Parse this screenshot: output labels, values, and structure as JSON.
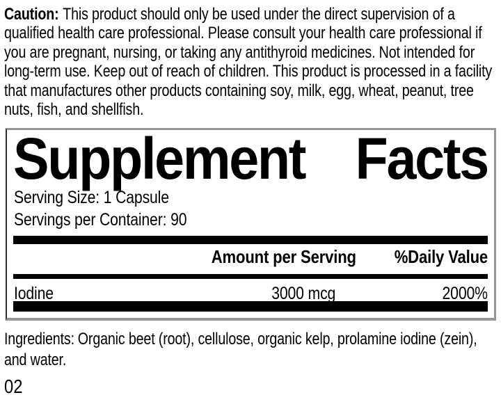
{
  "caution": {
    "label": "Caution:",
    "body": "This product should only be used under the direct supervision of a qualified health care professional. Please consult your health care professional if you are pregnant, nursing, or taking any antithyroid medicines. Not intended for long-term use. Keep out of reach of children. This product is processed in a facility that manufactures other products containing soy, milk, egg, wheat, peanut, tree nuts, fish, and shellfish."
  },
  "facts": {
    "title": {
      "word1": "Supplement",
      "word2": "Facts"
    },
    "serving_size": "Serving Size: 1 Capsule",
    "servings_per_container": "Servings per Container: 90",
    "headers": {
      "amount": "Amount per Serving",
      "daily_value": "%Daily Value"
    },
    "rows": [
      {
        "name": "Iodine",
        "amount": "3000 mcg",
        "daily_value": "2000%"
      }
    ]
  },
  "ingredients": {
    "label": "Ingredients:",
    "body": "Organic beet (root), cellulose, organic kelp, prolamine iodine (zein), and water."
  },
  "code": "02",
  "colors": {
    "text": "#000000",
    "separator_bar": "#000000",
    "panel_border": "#969696",
    "background": "#ffffff"
  }
}
